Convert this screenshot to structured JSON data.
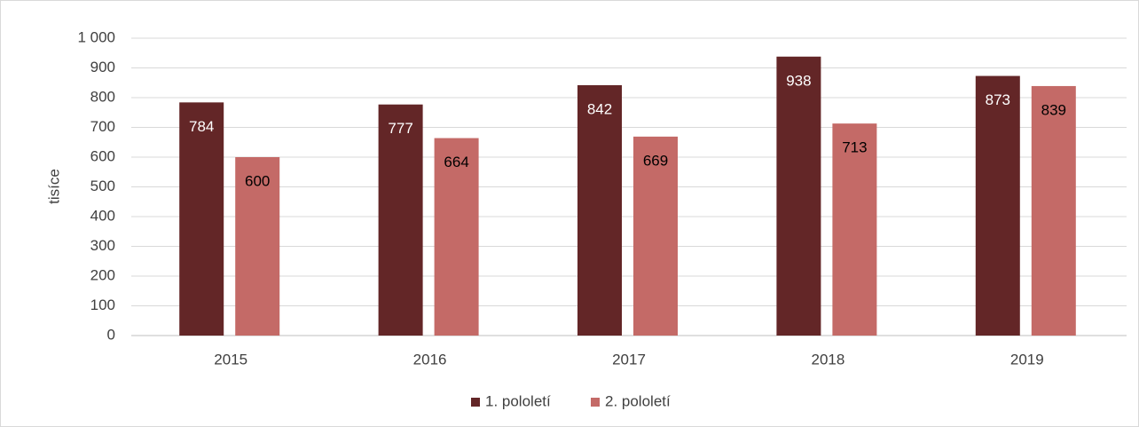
{
  "chart_data": {
    "type": "bar",
    "y_label": "tisíce",
    "categories": [
      "2015",
      "2016",
      "2017",
      "2018",
      "2019"
    ],
    "series": [
      {
        "name": "1. pololetí",
        "color": "#632627",
        "values": [
          784,
          777,
          842,
          938,
          873
        ]
      },
      {
        "name": "2. pololetí",
        "color": "#c46a67",
        "values": [
          600,
          664,
          669,
          713,
          839
        ]
      }
    ],
    "ylim": [
      0,
      1000
    ],
    "yticks": [
      0,
      100,
      200,
      300,
      400,
      500,
      600,
      700,
      800,
      900,
      {
        "value": 1000,
        "label": "1 000"
      }
    ],
    "grid": true,
    "legend": "bottom"
  }
}
